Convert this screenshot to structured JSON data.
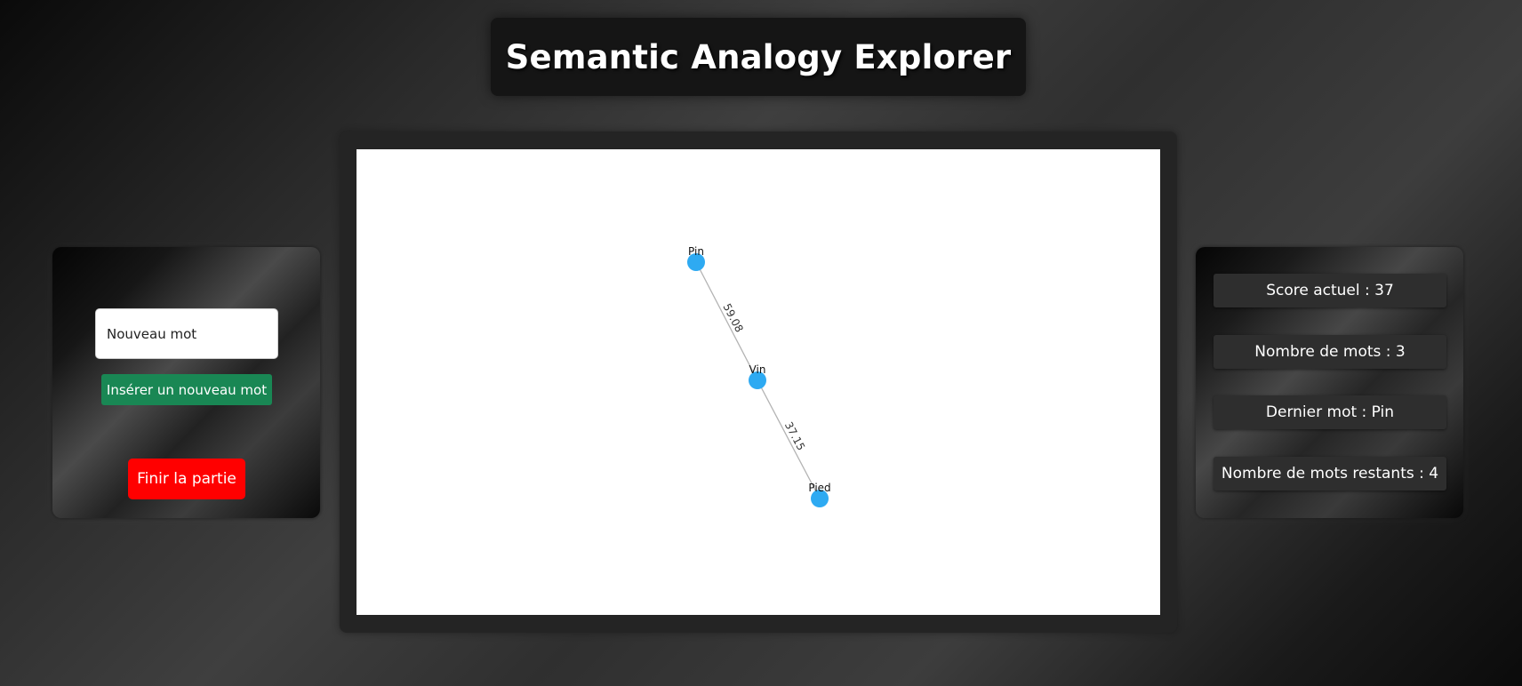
{
  "header": {
    "title": "Semantic Analogy Explorer"
  },
  "controls": {
    "input_placeholder": "Nouveau mot",
    "insert_label": "Insérer un nouveau mot",
    "finish_label": "Finir la partie"
  },
  "graph": {
    "node_color": "#2eaaf2",
    "edge_color": "#b3b3b3",
    "nodes": [
      {
        "id": "pin",
        "label": "Pin"
      },
      {
        "id": "vin",
        "label": "Vin"
      },
      {
        "id": "pied",
        "label": "Pied"
      }
    ],
    "edges": [
      {
        "from": "pin",
        "to": "vin",
        "label": "59.08"
      },
      {
        "from": "vin",
        "to": "pied",
        "label": "37.15"
      }
    ]
  },
  "stats": {
    "score": "Score actuel : 37",
    "word_count": "Nombre de mots : 3",
    "last_word": "Dernier mot : Pin",
    "remaining": "Nombre de mots restants : 4"
  }
}
